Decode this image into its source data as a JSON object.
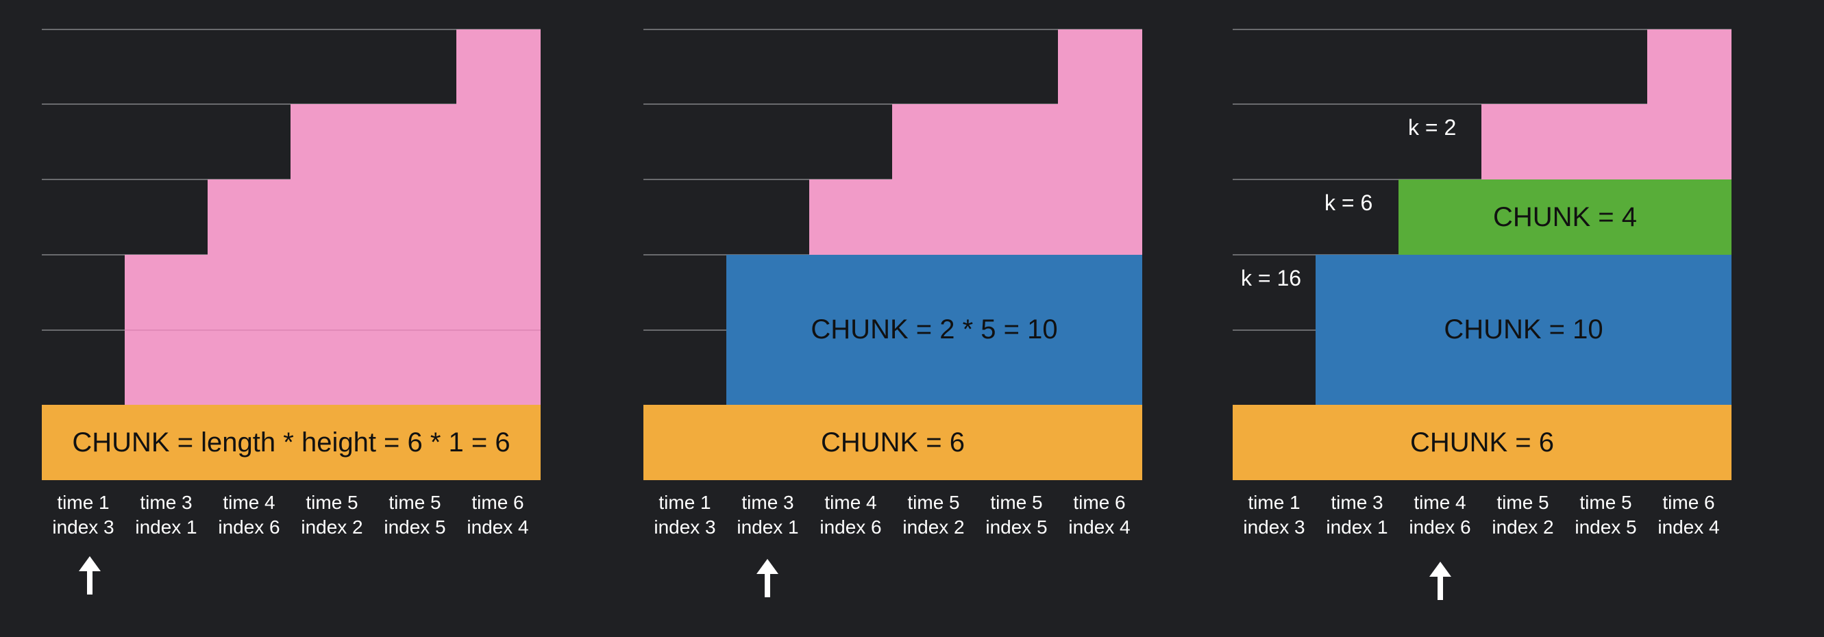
{
  "panels": [
    {
      "id": "panel-1",
      "blocks": {
        "orange_label": "CHUNK = length * height = 6 * 1 = 6"
      },
      "k_labels": [],
      "columns": [
        {
          "time": "time 1",
          "index": "index 3"
        },
        {
          "time": "time 3",
          "index": "index 1"
        },
        {
          "time": "time 4",
          "index": "index 6"
        },
        {
          "time": "time 5",
          "index": "index 2"
        },
        {
          "time": "time 5",
          "index": "index 5"
        },
        {
          "time": "time 6",
          "index": "index 4"
        }
      ],
      "arrow_column": 0
    },
    {
      "id": "panel-2",
      "blocks": {
        "blue_label": "CHUNK = 2 * 5 = 10",
        "orange_label": "CHUNK = 6"
      },
      "k_labels": [],
      "columns": [
        {
          "time": "time 1",
          "index": "index 3"
        },
        {
          "time": "time 3",
          "index": "index 1"
        },
        {
          "time": "time 4",
          "index": "index 6"
        },
        {
          "time": "time 5",
          "index": "index 2"
        },
        {
          "time": "time 5",
          "index": "index 5"
        },
        {
          "time": "time 6",
          "index": "index 4"
        }
      ],
      "arrow_column": 1
    },
    {
      "id": "panel-3",
      "blocks": {
        "green_label": "CHUNK = 4",
        "blue_label": "CHUNK = 10",
        "orange_label": "CHUNK = 6"
      },
      "k_labels": [
        "k = 2",
        "k = 6",
        "k = 16"
      ],
      "columns": [
        {
          "time": "time 1",
          "index": "index 3"
        },
        {
          "time": "time 3",
          "index": "index 1"
        },
        {
          "time": "time 4",
          "index": "index 6"
        },
        {
          "time": "time 5",
          "index": "index 2"
        },
        {
          "time": "time 5",
          "index": "index 5"
        },
        {
          "time": "time 6",
          "index": "index 4"
        }
      ],
      "arrow_column": 2
    }
  ],
  "colors": {
    "background": "#1f2023",
    "pink": "#f19bc8",
    "blue": "#3177b5",
    "green": "#58ad39",
    "orange": "#f2ac3d",
    "arrow": "#ffffff"
  }
}
